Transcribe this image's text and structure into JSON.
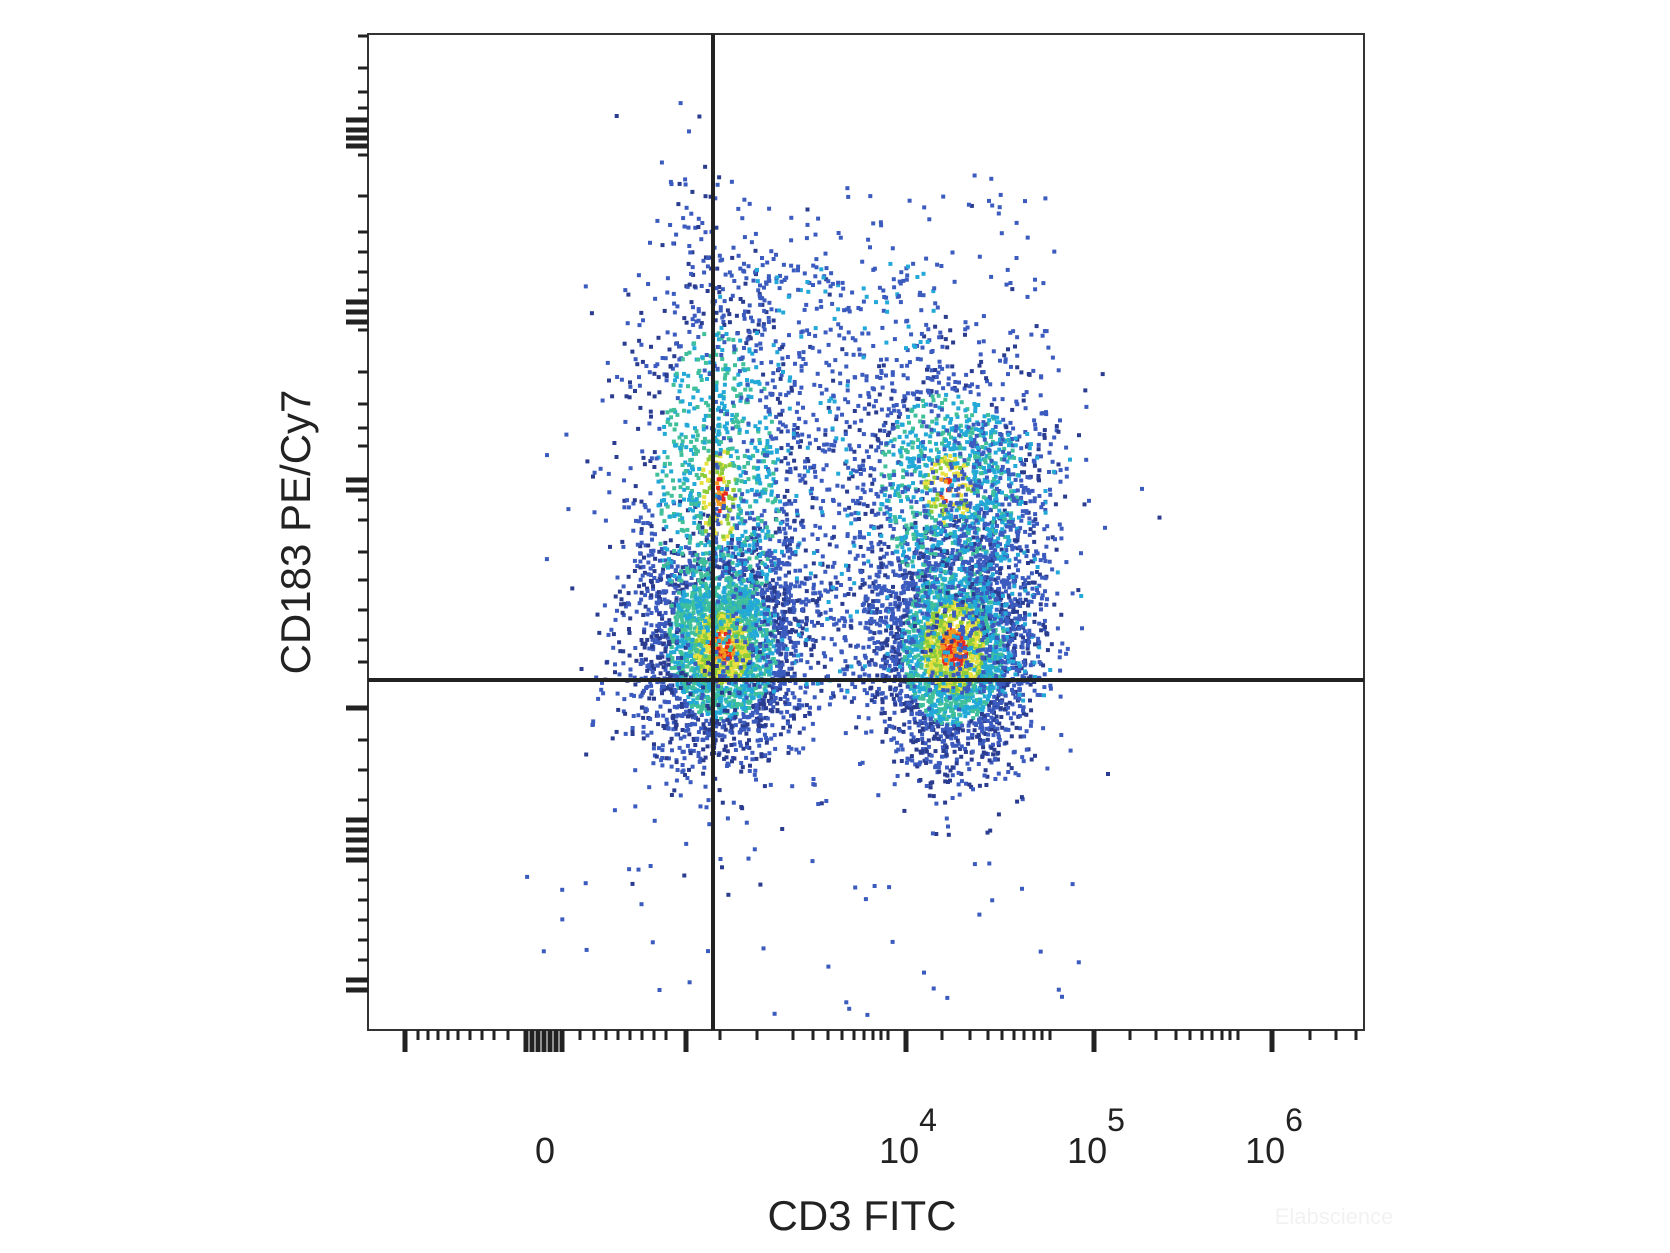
{
  "chart_data": {
    "type": "scatter",
    "subtype": "flow-cytometry-density-dot-plot",
    "title": "",
    "xlabel": "CD3 FITC",
    "ylabel": "CD183 PE/Cy7",
    "x_scale": "biexponential",
    "y_scale": "biexponential",
    "x_ticks": [
      {
        "value": 0,
        "label": "0",
        "exp": ""
      },
      {
        "value": 10000,
        "label": "10",
        "exp": "4"
      },
      {
        "value": 100000,
        "label": "10",
        "exp": "5"
      },
      {
        "value": 1000000,
        "label": "10",
        "exp": "6"
      }
    ],
    "y_ticks_labeled": false,
    "grid": false,
    "legend": "none",
    "quadrant_gates": {
      "x": 1500,
      "y": 1500
    },
    "color_scale": [
      "#2a3c8f",
      "#3b5bbf",
      "#23a9d8",
      "#3fbf9a",
      "#8ccc3a",
      "#e8e040",
      "#f39a1e",
      "#e8281e"
    ],
    "populations": [
      {
        "name": "",
        "cx": 120,
        "cy": 300,
        "density": "high"
      },
      {
        "name": "",
        "cx": 110,
        "cy": 2500,
        "density": "medium"
      },
      {
        "name": "",
        "cx": 28000,
        "cy": 300,
        "density": "very-high"
      },
      {
        "name": "",
        "cx": 25000,
        "cy": 18000,
        "density": "medium"
      }
    ],
    "watermark": "Elabscience"
  }
}
